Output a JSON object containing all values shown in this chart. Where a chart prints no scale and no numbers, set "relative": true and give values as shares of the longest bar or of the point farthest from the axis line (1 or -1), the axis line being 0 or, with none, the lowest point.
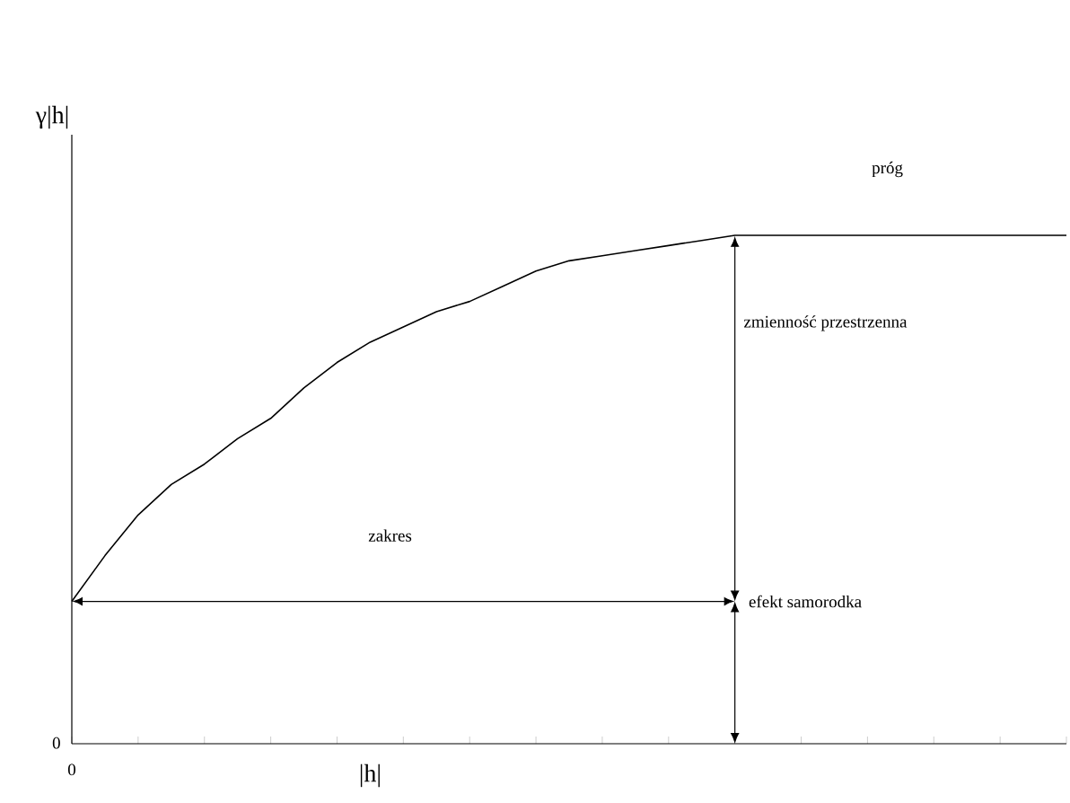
{
  "chart_data": {
    "type": "line",
    "relative": true,
    "xlabel": "|h|",
    "ylabel": "γ|h|",
    "categories": [
      null,
      null,
      null,
      null,
      null,
      null,
      null,
      null,
      null,
      null,
      null,
      null,
      null,
      null,
      null,
      null,
      null,
      null,
      null,
      null,
      null,
      null,
      null,
      null,
      null,
      null,
      null,
      null,
      null,
      null,
      null
    ],
    "series": [
      {
        "color": "#000000",
        "values": [
          0.28,
          0.37,
          0.45,
          0.51,
          0.55,
          0.6,
          0.64,
          0.7,
          0.75,
          0.79,
          0.82,
          0.85,
          0.87,
          0.9,
          0.93,
          0.95,
          0.96,
          0.97,
          0.98,
          0.99,
          1,
          1,
          1,
          1,
          1,
          1,
          1,
          1,
          1,
          1,
          1
        ]
      }
    ],
    "annotations": [
      "próg",
      "zmienność przestrzenna",
      "zakres",
      "efekt samorodka",
      "0",
      "0"
    ]
  }
}
